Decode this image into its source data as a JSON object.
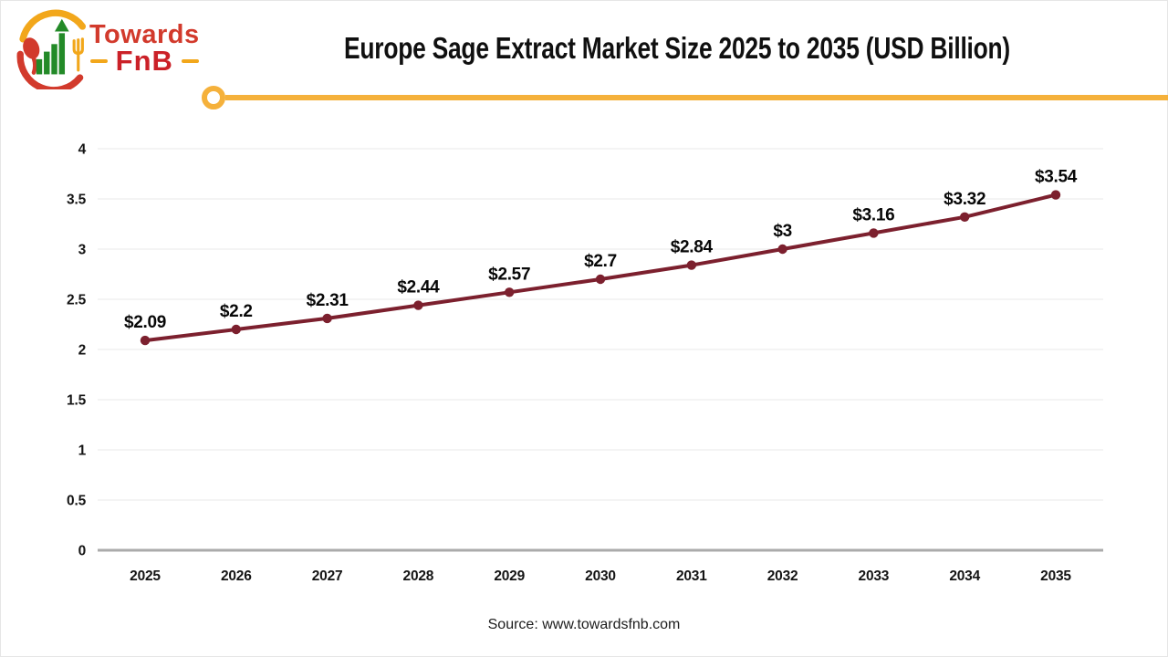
{
  "header": {
    "title": "Europe Sage Extract Market Size 2025 to 2035 (USD Billion)",
    "logo": {
      "brand_top": "Towards",
      "brand_bottom": "FnB"
    }
  },
  "footer": {
    "source": "Source: www.towardsfnb.com"
  },
  "theme": {
    "divider_color": "#F5B13B",
    "logo_red": "#D23A2C",
    "logo_dark_red": "#CB2128",
    "logo_yellow": "#F2A71B",
    "logo_green": "#238A28"
  },
  "chart_data": {
    "type": "line",
    "title": "Europe Sage Extract Market Size 2025 to 2035 (USD Billion)",
    "categories": [
      "2025",
      "2026",
      "2027",
      "2028",
      "2029",
      "2030",
      "2031",
      "2032",
      "2033",
      "2034",
      "2035"
    ],
    "values": [
      2.09,
      2.2,
      2.31,
      2.44,
      2.57,
      2.7,
      2.84,
      3,
      3.16,
      3.32,
      3.54
    ],
    "point_labels": [
      "$2.09",
      "$2.2",
      "$2.31",
      "$2.44",
      "$2.57",
      "$2.7",
      "$2.84",
      "$3",
      "$3.16",
      "$3.32",
      "$3.54"
    ],
    "xlabel": "",
    "ylabel": "",
    "ylim": [
      0,
      4
    ],
    "yticks": [
      0,
      0.5,
      1,
      1.5,
      2,
      2.5,
      3,
      3.5,
      4
    ],
    "ytick_labels": [
      "0",
      "0.5",
      "1",
      "1.5",
      "2",
      "2.5",
      "3",
      "3.5",
      "4"
    ],
    "grid": true,
    "legend": "none",
    "series_color": "#7C202E",
    "gridline_color": "#E9E9E9",
    "axis_color": "#ABABAB",
    "label_color": "#141414"
  }
}
